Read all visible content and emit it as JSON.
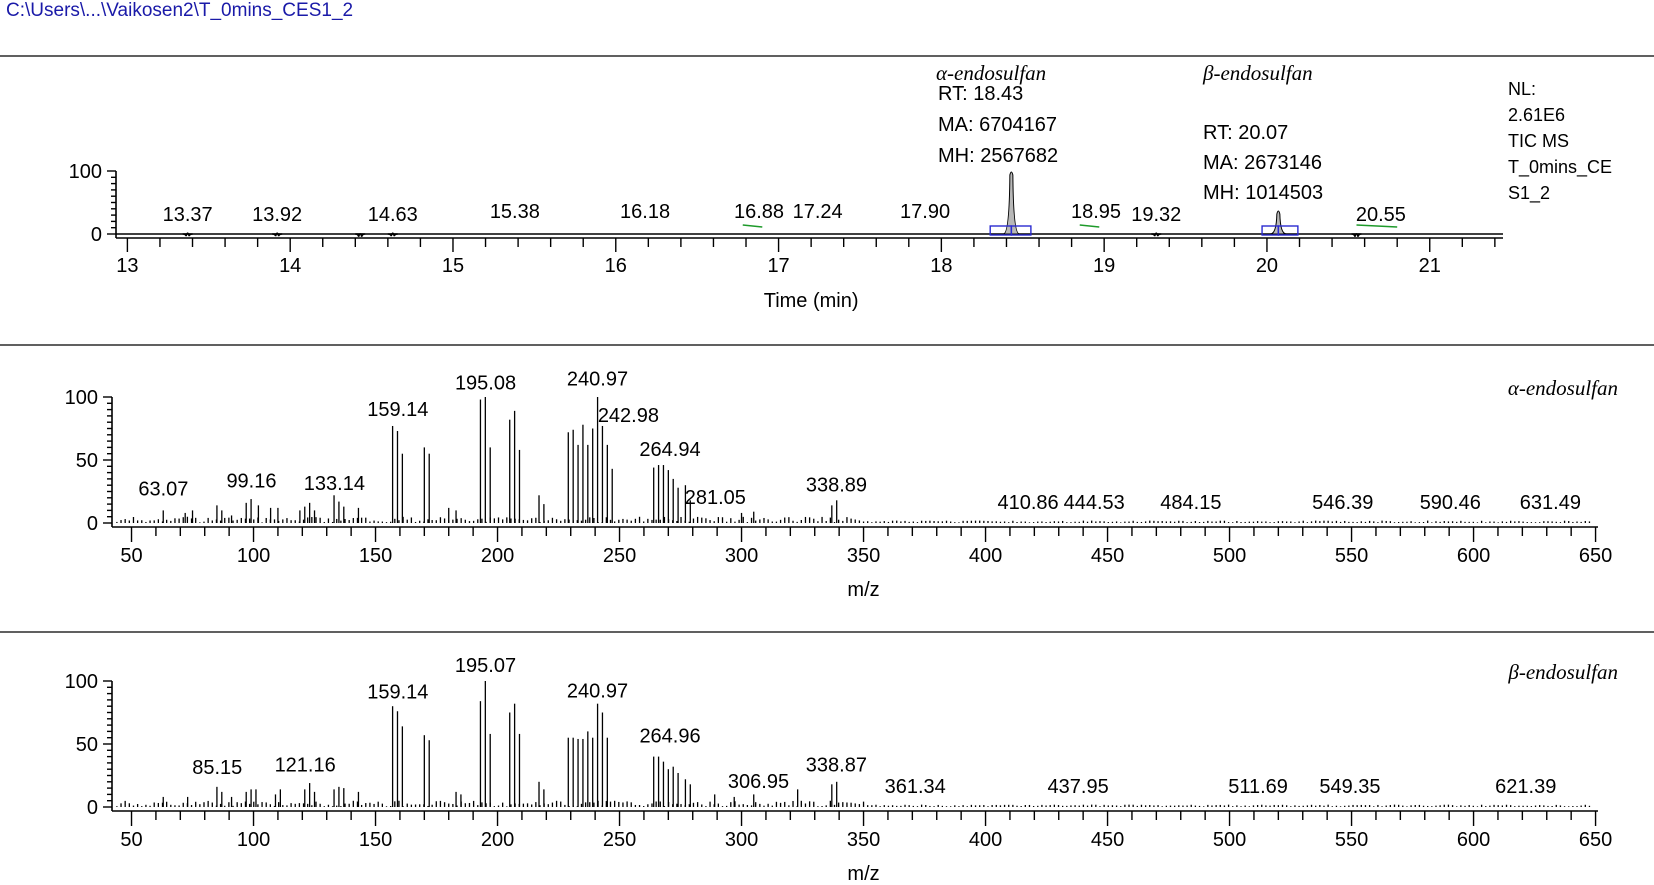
{
  "file_path": "C:\\Users\\...\\Vaikosen2\\T_0mins_CES1_2",
  "chart_data": [
    {
      "type": "line",
      "panel": "tic",
      "xlabel": "Time (min)",
      "ylabel": "",
      "xlim": [
        12.93,
        21.45
      ],
      "ylim": [
        0,
        100
      ],
      "x_ticks": [
        "13",
        "14",
        "15",
        "16",
        "17",
        "18",
        "19",
        "20",
        "21"
      ],
      "y_ticks": [
        "0",
        "100"
      ],
      "peak_labels": [
        "13.37",
        "13.92",
        "14.63",
        "15.38",
        "16.18",
        "16.88",
        "17.24",
        "17.90",
        "18.95",
        "19.32",
        "20.55"
      ],
      "peaks": [
        {
          "rt": 18.43,
          "height": 100
        },
        {
          "rt": 20.07,
          "height": 38
        },
        {
          "rt": 13.37,
          "height": 3
        },
        {
          "rt": 13.92,
          "height": 3
        },
        {
          "rt": 14.43,
          "height": 2
        },
        {
          "rt": 14.63,
          "height": 3
        },
        {
          "rt": 19.32,
          "height": 3
        },
        {
          "rt": 20.55,
          "height": 2
        }
      ],
      "annotations": [
        {
          "name": "α-endosulfan",
          "lines": [
            "RT: 18.43",
            "MA: 6704167",
            "MH: 2567682"
          ]
        },
        {
          "name": "β-endosulfan",
          "lines": [
            "RT: 20.07",
            "MA: 2673146",
            "MH: 1014503"
          ]
        }
      ],
      "info": [
        "NL:",
        "2.61E6",
        "TIC MS",
        "T_0mins_CE",
        "S1_2"
      ]
    },
    {
      "type": "bar",
      "panel": "spectrum-alpha",
      "title": "α-endosulfan",
      "xlabel": "m/z",
      "xlim": [
        42,
        651
      ],
      "ylim": [
        0,
        100
      ],
      "x_ticks": [
        "50",
        "100",
        "150",
        "200",
        "250",
        "300",
        "350",
        "400",
        "450",
        "500",
        "550",
        "600",
        "650"
      ],
      "y_ticks": [
        "0",
        "50",
        "100"
      ],
      "peak_labels": [
        {
          "mz": 63.07,
          "text": "63.07"
        },
        {
          "mz": 99.16,
          "text": "99.16"
        },
        {
          "mz": 133.14,
          "text": "133.14"
        },
        {
          "mz": 159.14,
          "text": "159.14"
        },
        {
          "mz": 195.08,
          "text": "195.08"
        },
        {
          "mz": 240.97,
          "text": "240.97"
        },
        {
          "mz": 242.98,
          "text": "242.98"
        },
        {
          "mz": 264.94,
          "text": "264.94"
        },
        {
          "mz": 281.05,
          "text": "281.05"
        },
        {
          "mz": 338.89,
          "text": "338.89"
        },
        {
          "mz": 410.86,
          "text": "410.86"
        },
        {
          "mz": 444.53,
          "text": "444.53"
        },
        {
          "mz": 484.15,
          "text": "484.15"
        },
        {
          "mz": 546.39,
          "text": "546.39"
        },
        {
          "mz": 590.46,
          "text": "590.46"
        },
        {
          "mz": 631.49,
          "text": "631.49"
        }
      ],
      "x": [
        63,
        72,
        75,
        85,
        87,
        91,
        97,
        99,
        102,
        107,
        110,
        119,
        121,
        123,
        125,
        133,
        135,
        137,
        143,
        157,
        159,
        161,
        170,
        172,
        180,
        183,
        193,
        195,
        197,
        205,
        207,
        209,
        217,
        219,
        229,
        231,
        233,
        235,
        237,
        239,
        241,
        243,
        245,
        247,
        264,
        266,
        268,
        270,
        272,
        274,
        277,
        279,
        300,
        305,
        337,
        339
      ],
      "values": [
        10,
        8,
        10,
        14,
        10,
        6,
        16,
        19,
        14,
        12,
        12,
        10,
        13,
        16,
        10,
        22,
        17,
        13,
        12,
        77,
        73,
        55,
        60,
        55,
        12,
        10,
        98,
        100,
        60,
        82,
        89,
        58,
        22,
        15,
        72,
        74,
        62,
        78,
        62,
        75,
        100,
        77,
        62,
        43,
        44,
        46,
        46,
        42,
        35,
        28,
        30,
        18,
        8,
        9,
        14,
        18
      ]
    },
    {
      "type": "bar",
      "panel": "spectrum-beta",
      "title": "β-endosulfan",
      "xlabel": "m/z",
      "xlim": [
        42,
        651
      ],
      "ylim": [
        0,
        100
      ],
      "x_ticks": [
        "50",
        "100",
        "150",
        "200",
        "250",
        "300",
        "350",
        "400",
        "450",
        "500",
        "550",
        "600",
        "650"
      ],
      "y_ticks": [
        "0",
        "50",
        "100"
      ],
      "peak_labels": [
        {
          "mz": 85.15,
          "text": "85.15"
        },
        {
          "mz": 121.16,
          "text": "121.16"
        },
        {
          "mz": 159.14,
          "text": "159.14"
        },
        {
          "mz": 195.07,
          "text": "195.07"
        },
        {
          "mz": 240.97,
          "text": "240.97"
        },
        {
          "mz": 264.96,
          "text": "264.96"
        },
        {
          "mz": 306.95,
          "text": "306.95"
        },
        {
          "mz": 338.87,
          "text": "338.87"
        },
        {
          "mz": 361.34,
          "text": "361.34"
        },
        {
          "mz": 437.95,
          "text": "437.95"
        },
        {
          "mz": 511.69,
          "text": "511.69"
        },
        {
          "mz": 549.35,
          "text": "549.35"
        },
        {
          "mz": 621.39,
          "text": "621.39"
        }
      ],
      "x": [
        63,
        73,
        85,
        87,
        91,
        97,
        99,
        101,
        109,
        111,
        121,
        123,
        125,
        133,
        135,
        137,
        143,
        157,
        159,
        161,
        170,
        172,
        183,
        185,
        193,
        195,
        197,
        205,
        207,
        209,
        217,
        219,
        229,
        231,
        233,
        235,
        237,
        239,
        241,
        243,
        245,
        264,
        266,
        268,
        270,
        272,
        274,
        277,
        279,
        289,
        297,
        305,
        323,
        337,
        339
      ],
      "values": [
        8,
        8,
        16,
        12,
        8,
        12,
        14,
        14,
        10,
        14,
        14,
        19,
        12,
        14,
        16,
        15,
        12,
        80,
        76,
        64,
        57,
        53,
        12,
        10,
        84,
        100,
        58,
        75,
        82,
        58,
        20,
        14,
        55,
        55,
        54,
        54,
        60,
        55,
        82,
        75,
        55,
        40,
        40,
        36,
        30,
        32,
        27,
        22,
        18,
        10,
        8,
        10,
        14,
        18,
        20
      ]
    }
  ]
}
